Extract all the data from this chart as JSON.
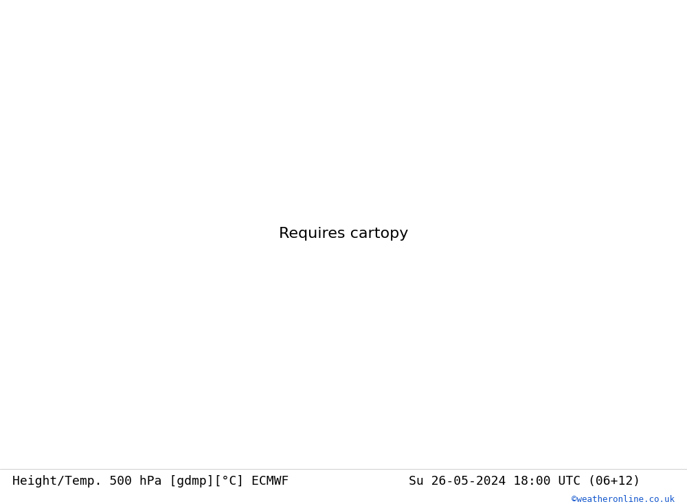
{
  "title_left": "Height/Temp. 500 hPa [gdmp][°C] ECMWF",
  "title_right": "Su 26-05-2024 18:00 UTC (06+12)",
  "watermark": "©weatheronline.co.uk",
  "background_color": "#d3d3d3",
  "land_color": "#c8f0a0",
  "border_color": "#999999",
  "height_contour_color": "#000000",
  "temp_warm_color": "#ff8c00",
  "temp_cold_color_red": "#ff0000",
  "bottom_bar_color": "#ffffff",
  "font_size_title": 13,
  "font_size_watermark": 9,
  "lon_min": -119,
  "lon_max": -51,
  "lat_min": 4,
  "lat_max": 46
}
